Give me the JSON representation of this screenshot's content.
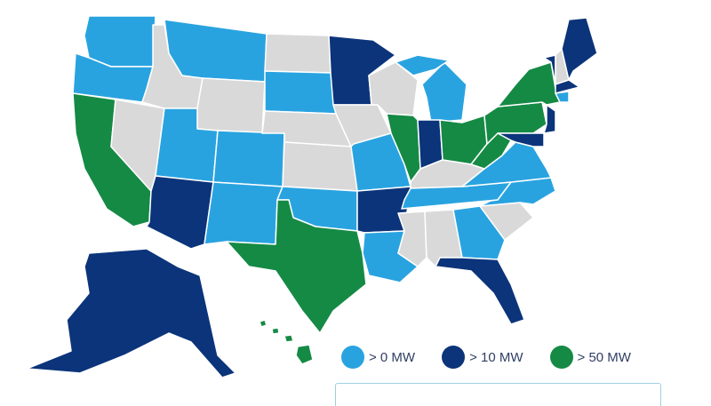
{
  "colors": {
    "gt0": "#29a3e0",
    "gt10": "#0b347a",
    "gt50": "#158a45",
    "none": "#d9d9d9"
  },
  "legend": [
    {
      "key": "gt0",
      "label": "> 0 MW"
    },
    {
      "key": "gt10",
      "label": "> 10 MW"
    },
    {
      "key": "gt50",
      "label": "> 50 MW"
    }
  ],
  "states": {
    "WA": "gt0",
    "OR": "gt0",
    "MT": "gt0",
    "SD": "gt0",
    "UT": "gt0",
    "CO": "gt0",
    "NM": "gt0",
    "OK": "gt0",
    "MO": "gt0",
    "LA": "gt0",
    "MI": "gt0",
    "TN": "gt0",
    "VA": "gt0",
    "NC": "gt0",
    "GA": "gt0",
    "CT": "gt0",
    "MN": "gt10",
    "AZ": "gt10",
    "AR": "gt10",
    "IN": "gt10",
    "FL": "gt10",
    "AK": "gt10",
    "ME": "gt10",
    "VT": "gt10",
    "MA": "gt10",
    "NJ": "gt10",
    "MD": "gt10",
    "CA": "gt50",
    "TX": "gt50",
    "IL": "gt50",
    "OH": "gt50",
    "NY": "gt50",
    "PA": "gt50",
    "WV": "gt50",
    "HI": "gt50",
    "ID": "none",
    "WY": "none",
    "NV": "none",
    "ND": "none",
    "NE": "none",
    "KS": "none",
    "IA": "none",
    "WI": "none",
    "KY": "none",
    "MS": "none",
    "AL": "none",
    "SC": "none",
    "NH": "none"
  }
}
